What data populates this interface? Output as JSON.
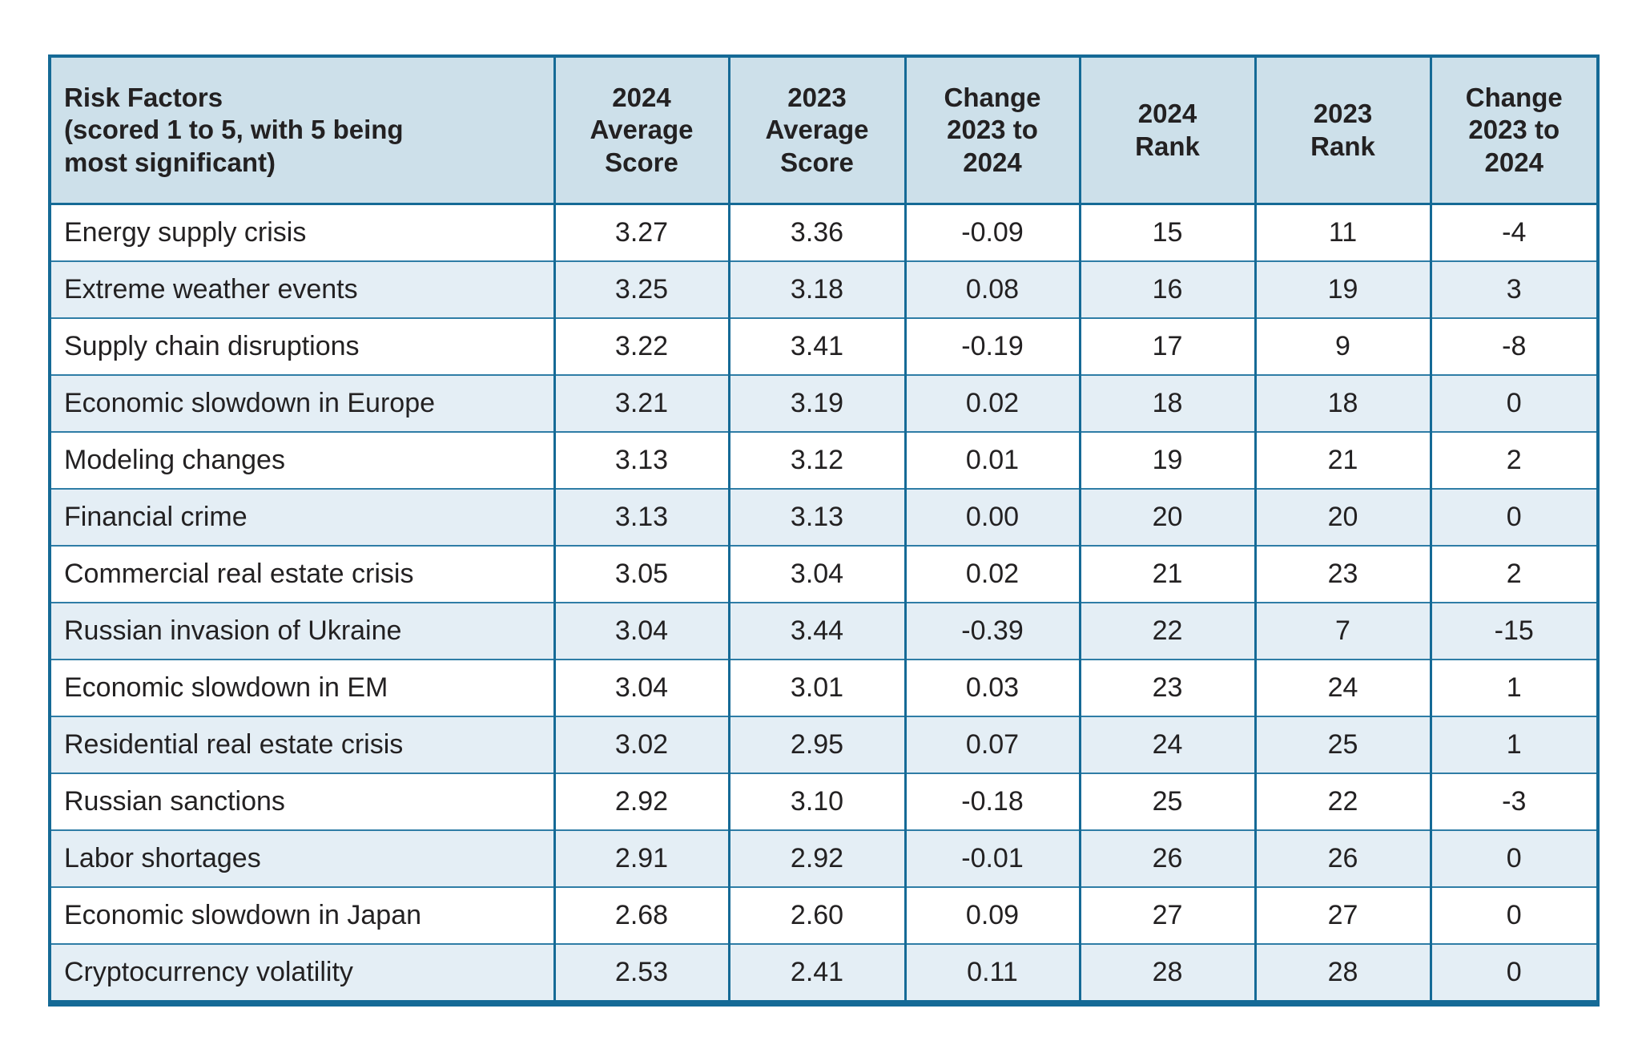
{
  "table": {
    "columns": [
      {
        "label": "Risk Factors\n(scored 1 to 5, with 5 being\nmost significant)"
      },
      {
        "label": "2024\nAverage\nScore"
      },
      {
        "label": "2023\nAverage\nScore"
      },
      {
        "label": "Change\n2023 to\n2024"
      },
      {
        "label": "2024\nRank"
      },
      {
        "label": "2023\nRank"
      },
      {
        "label": "Change\n2023 to\n2024"
      }
    ],
    "rows": [
      [
        "Energy supply crisis",
        "3.27",
        "3.36",
        "-0.09",
        "15",
        "11",
        "-4"
      ],
      [
        "Extreme weather events",
        "3.25",
        "3.18",
        "0.08",
        "16",
        "19",
        "3"
      ],
      [
        "Supply chain disruptions",
        "3.22",
        "3.41",
        "-0.19",
        "17",
        "9",
        "-8"
      ],
      [
        "Economic slowdown in Europe",
        "3.21",
        "3.19",
        "0.02",
        "18",
        "18",
        "0"
      ],
      [
        "Modeling changes",
        "3.13",
        "3.12",
        "0.01",
        "19",
        "21",
        "2"
      ],
      [
        "Financial crime",
        "3.13",
        "3.13",
        "0.00",
        "20",
        "20",
        "0"
      ],
      [
        "Commercial real estate crisis",
        "3.05",
        "3.04",
        "0.02",
        "21",
        "23",
        "2"
      ],
      [
        "Russian invasion of Ukraine",
        "3.04",
        "3.44",
        "-0.39",
        "22",
        "7",
        "-15"
      ],
      [
        "Economic slowdown in EM",
        "3.04",
        "3.01",
        "0.03",
        "23",
        "24",
        "1"
      ],
      [
        "Residential real estate crisis",
        "3.02",
        "2.95",
        "0.07",
        "24",
        "25",
        "1"
      ],
      [
        "Russian sanctions",
        "2.92",
        "3.10",
        "-0.18",
        "25",
        "22",
        "-3"
      ],
      [
        "Labor shortages",
        "2.91",
        "2.92",
        "-0.01",
        "26",
        "26",
        "0"
      ],
      [
        "Economic slowdown in Japan",
        "2.68",
        "2.60",
        "0.09",
        "27",
        "27",
        "0"
      ],
      [
        "Cryptocurrency volatility",
        "2.53",
        "2.41",
        "0.11",
        "28",
        "28",
        "0"
      ]
    ]
  },
  "colors": {
    "border": "#156a96",
    "header_bg": "#cde0ea",
    "alt_row_bg": "#e4eef5",
    "row_bg": "#ffffff",
    "text": "#232122"
  }
}
